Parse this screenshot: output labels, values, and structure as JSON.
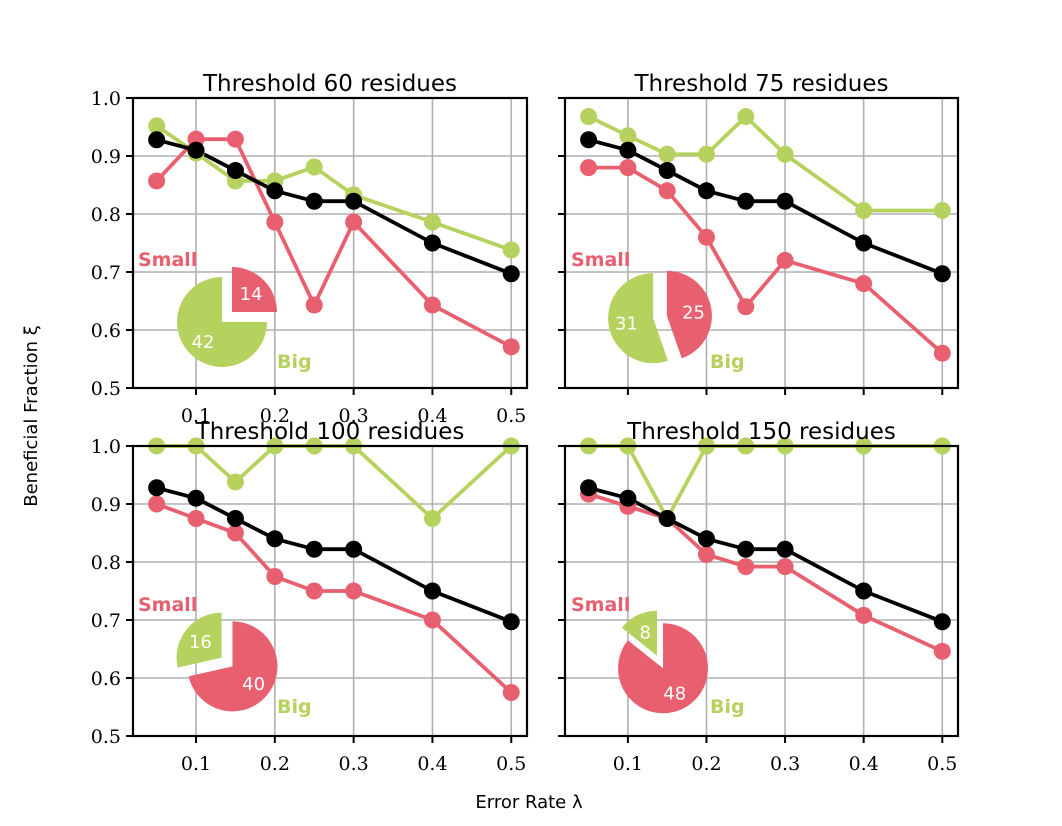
{
  "chart_data": {
    "type": "line",
    "x": [
      0.05,
      0.1,
      0.15,
      0.2,
      0.25,
      0.3,
      0.4,
      0.5
    ],
    "xticks": [
      "0.1",
      "0.2",
      "0.3",
      "0.4",
      "0.5"
    ],
    "yticks": [
      "0.5",
      "0.6",
      "0.7",
      "0.8",
      "0.9",
      "1.0"
    ],
    "xlim": [
      0.02,
      0.52
    ],
    "ylim": [
      0.5,
      1.0
    ],
    "xlabel": "Error Rate λ",
    "ylabel": "Beneficial Fraction ξ",
    "grid": true,
    "colors": {
      "all": "#000000",
      "small": "#e8606f",
      "big": "#b5d25e"
    },
    "pie_labels": {
      "small": "Small",
      "big": "Big"
    },
    "panels": [
      {
        "title": "Threshold 60 residues",
        "series": [
          {
            "key": "all",
            "values": [
              0.928,
              0.91,
              0.875,
              0.84,
              0.822,
              0.822,
              0.75,
              0.697
            ]
          },
          {
            "key": "small",
            "values": [
              0.857,
              0.929,
              0.929,
              0.786,
              0.643,
              0.786,
              0.643,
              0.571
            ]
          },
          {
            "key": "big",
            "values": [
              0.952,
              0.905,
              0.857,
              0.857,
              0.881,
              0.833,
              0.786,
              0.738
            ]
          }
        ],
        "pie": {
          "small": 14,
          "big": 42
        }
      },
      {
        "title": "Threshold 75 residues",
        "series": [
          {
            "key": "all",
            "values": [
              0.928,
              0.91,
              0.875,
              0.84,
              0.822,
              0.822,
              0.75,
              0.697
            ]
          },
          {
            "key": "small",
            "values": [
              0.88,
              0.88,
              0.84,
              0.76,
              0.64,
              0.72,
              0.68,
              0.56
            ]
          },
          {
            "key": "big",
            "values": [
              0.968,
              0.935,
              0.903,
              0.903,
              0.968,
              0.903,
              0.806,
              0.806
            ]
          }
        ],
        "pie": {
          "small": 25,
          "big": 31
        }
      },
      {
        "title": "Threshold 100 residues",
        "series": [
          {
            "key": "all",
            "values": [
              0.928,
              0.91,
              0.875,
              0.84,
              0.822,
              0.822,
              0.75,
              0.697
            ]
          },
          {
            "key": "small",
            "values": [
              0.9,
              0.875,
              0.85,
              0.775,
              0.75,
              0.75,
              0.7,
              0.575
            ]
          },
          {
            "key": "big",
            "values": [
              1.0,
              1.0,
              0.938,
              1.0,
              1.0,
              1.0,
              0.875,
              1.0
            ]
          }
        ],
        "pie": {
          "small": 40,
          "big": 16
        }
      },
      {
        "title": "Threshold 150 residues",
        "series": [
          {
            "key": "all",
            "values": [
              0.928,
              0.91,
              0.875,
              0.84,
              0.822,
              0.822,
              0.75,
              0.697
            ]
          },
          {
            "key": "small",
            "values": [
              0.917,
              0.896,
              0.875,
              0.813,
              0.792,
              0.792,
              0.708,
              0.646
            ]
          },
          {
            "key": "big",
            "values": [
              1.0,
              1.0,
              0.875,
              1.0,
              1.0,
              1.0,
              1.0,
              1.0
            ]
          }
        ],
        "pie": {
          "small": 48,
          "big": 8
        }
      }
    ]
  }
}
